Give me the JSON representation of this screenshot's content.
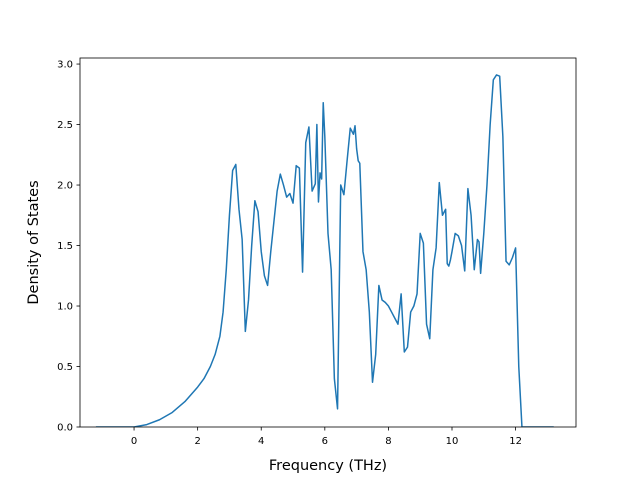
{
  "chart_data": {
    "type": "line",
    "title": "",
    "xlabel": "Frequency (THz)",
    "ylabel": "Density of States",
    "xlim": [
      -1.7,
      13.9
    ],
    "ylim": [
      0.0,
      3.05
    ],
    "xticks": [
      "0",
      "2",
      "4",
      "6",
      "8",
      "10",
      "12"
    ],
    "xtick_values": [
      0,
      2,
      4,
      6,
      8,
      10,
      12
    ],
    "yticks": [
      "0.0",
      "0.5",
      "1.0",
      "1.5",
      "2.0",
      "2.5",
      "3.0"
    ],
    "ytick_values": [
      0.0,
      0.5,
      1.0,
      1.5,
      2.0,
      2.5,
      3.0
    ],
    "grid": false,
    "legend": "none",
    "line_color": "#1f77b4",
    "series": [
      {
        "x": [
          -1.2,
          -0.6,
          0.0,
          0.4,
          0.8,
          1.2,
          1.6,
          2.0,
          2.2,
          2.4,
          2.55,
          2.7,
          2.8,
          2.9,
          3.0,
          3.1,
          3.2,
          3.3,
          3.4,
          3.5,
          3.6,
          3.7,
          3.8,
          3.9,
          4.0,
          4.1,
          4.2,
          4.3,
          4.4,
          4.5,
          4.6,
          4.7,
          4.8,
          4.9,
          5.0,
          5.1,
          5.2,
          5.3,
          5.4,
          5.5,
          5.6,
          5.7,
          5.75,
          5.8,
          5.85,
          5.9,
          5.95,
          6.0,
          6.05,
          6.1,
          6.2,
          6.3,
          6.4,
          6.5,
          6.6,
          6.7,
          6.8,
          6.9,
          6.95,
          7.0,
          7.05,
          7.1,
          7.2,
          7.3,
          7.4,
          7.5,
          7.6,
          7.7,
          7.8,
          7.9,
          8.0,
          8.1,
          8.2,
          8.3,
          8.4,
          8.5,
          8.6,
          8.7,
          8.8,
          8.9,
          9.0,
          9.1,
          9.2,
          9.3,
          9.4,
          9.5,
          9.6,
          9.7,
          9.8,
          9.85,
          9.9,
          9.95,
          10.0,
          10.1,
          10.2,
          10.3,
          10.4,
          10.5,
          10.6,
          10.7,
          10.8,
          10.85,
          10.9,
          11.0,
          11.1,
          11.2,
          11.3,
          11.4,
          11.5,
          11.6,
          11.7,
          11.8,
          11.9,
          12.0,
          12.1,
          12.2,
          13.2
        ],
        "y": [
          0.0,
          0.0,
          0.0,
          0.02,
          0.06,
          0.12,
          0.21,
          0.33,
          0.4,
          0.5,
          0.6,
          0.75,
          0.95,
          1.3,
          1.75,
          2.12,
          2.17,
          1.8,
          1.55,
          0.79,
          1.05,
          1.5,
          1.87,
          1.78,
          1.45,
          1.25,
          1.17,
          1.45,
          1.7,
          1.95,
          2.09,
          2.0,
          1.9,
          1.93,
          1.85,
          2.16,
          2.14,
          1.28,
          2.35,
          2.48,
          1.95,
          2.01,
          2.5,
          1.86,
          2.1,
          2.05,
          2.68,
          2.4,
          2.0,
          1.6,
          1.3,
          0.4,
          0.15,
          2.0,
          1.92,
          2.2,
          2.47,
          2.42,
          2.49,
          2.3,
          2.2,
          2.18,
          1.45,
          1.3,
          0.95,
          0.37,
          0.6,
          1.17,
          1.05,
          1.03,
          1.0,
          0.95,
          0.9,
          0.85,
          1.1,
          0.62,
          0.66,
          0.95,
          1.0,
          1.1,
          1.6,
          1.52,
          0.85,
          0.73,
          1.3,
          1.48,
          2.02,
          1.75,
          1.8,
          1.35,
          1.33,
          1.38,
          1.45,
          1.6,
          1.58,
          1.5,
          1.29,
          1.97,
          1.75,
          1.3,
          1.55,
          1.53,
          1.27,
          1.6,
          2.0,
          2.5,
          2.87,
          2.91,
          2.9,
          2.4,
          1.37,
          1.34,
          1.4,
          1.48,
          0.5,
          0.0,
          0.0
        ]
      }
    ]
  }
}
